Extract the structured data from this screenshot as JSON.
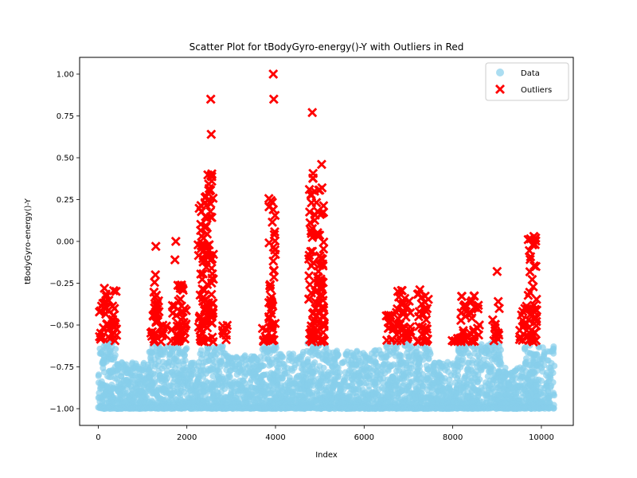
{
  "chart_data": {
    "type": "scatter",
    "title": "Scatter Plot for tBodyGyro-energy()-Y with Outliers in Red",
    "xlabel": "Index",
    "ylabel": "tBodyGyro-energy()-Y",
    "xlim": [
      -420,
      10720
    ],
    "ylim": [
      -1.1,
      1.1
    ],
    "xticks": [
      0,
      2000,
      4000,
      6000,
      8000,
      10000
    ],
    "xtick_labels": [
      "0",
      "2000",
      "4000",
      "6000",
      "8000",
      "10000"
    ],
    "yticks": [
      -1.0,
      -0.75,
      -0.5,
      -0.25,
      0.0,
      0.25,
      0.5,
      0.75,
      1.0
    ],
    "ytick_labels": [
      "−1.00",
      "−0.75",
      "−0.50",
      "−0.25",
      "0.00",
      "0.25",
      "0.50",
      "0.75",
      "1.00"
    ],
    "grid": false,
    "legend": {
      "position": "top-right",
      "entries": [
        {
          "label": "Data",
          "color": "#87ceeb",
          "marker": "circle"
        },
        {
          "label": "Outliers",
          "color": "#ff0000",
          "marker": "x"
        }
      ]
    },
    "series": [
      {
        "name": "Data",
        "color": "#87ceeb",
        "marker": "circle",
        "note": "Dense background of ~10299 points; generated from segment envelopes below",
        "segments": [
          {
            "x0": 0,
            "x1": 420,
            "ymin": -1.0,
            "ymax": -0.6
          },
          {
            "x0": 420,
            "x1": 1150,
            "ymin": -1.0,
            "ymax": -0.72
          },
          {
            "x0": 1150,
            "x1": 2000,
            "ymin": -1.0,
            "ymax": -0.62
          },
          {
            "x0": 2000,
            "x1": 2300,
            "ymin": -1.0,
            "ymax": -0.72
          },
          {
            "x0": 2300,
            "x1": 2900,
            "ymin": -1.0,
            "ymax": -0.62
          },
          {
            "x0": 2900,
            "x1": 3700,
            "ymin": -1.0,
            "ymax": -0.68
          },
          {
            "x0": 3700,
            "x1": 4050,
            "ymin": -1.0,
            "ymax": -0.62
          },
          {
            "x0": 4050,
            "x1": 4700,
            "ymin": -1.0,
            "ymax": -0.66
          },
          {
            "x0": 4700,
            "x1": 5150,
            "ymin": -1.0,
            "ymax": -0.6
          },
          {
            "x0": 5150,
            "x1": 6500,
            "ymin": -1.0,
            "ymax": -0.65
          },
          {
            "x0": 6500,
            "x1": 7500,
            "ymin": -1.0,
            "ymax": -0.6
          },
          {
            "x0": 7500,
            "x1": 8100,
            "ymin": -1.0,
            "ymax": -0.72
          },
          {
            "x0": 8100,
            "x1": 9100,
            "ymin": -1.0,
            "ymax": -0.6
          },
          {
            "x0": 9100,
            "x1": 9600,
            "ymin": -1.0,
            "ymax": -0.75
          },
          {
            "x0": 9600,
            "x1": 10299,
            "ymin": -1.0,
            "ymax": -0.62
          }
        ]
      },
      {
        "name": "Outliers",
        "color": "#ff0000",
        "marker": "x",
        "note": "Clusters of outliers; generated from cluster envelopes plus explicit extreme points",
        "clusters": [
          {
            "x0": 0,
            "x1": 130,
            "ymin": -0.6,
            "ymax": -0.36
          },
          {
            "x0": 130,
            "x1": 430,
            "ymin": -0.6,
            "ymax": -0.26
          },
          {
            "x0": 1180,
            "x1": 1380,
            "ymin": -0.6,
            "ymax": -0.21
          },
          {
            "x0": 1380,
            "x1": 1550,
            "ymin": -0.6,
            "ymax": -0.45
          },
          {
            "x0": 1640,
            "x1": 1920,
            "ymin": -0.6,
            "ymax": -0.26
          },
          {
            "x0": 1920,
            "x1": 2000,
            "ymin": -0.6,
            "ymax": -0.4
          },
          {
            "x0": 2250,
            "x1": 2400,
            "ymin": -0.6,
            "ymax": 0.28
          },
          {
            "x0": 2400,
            "x1": 2600,
            "ymin": -0.6,
            "ymax": 0.42
          },
          {
            "x0": 2780,
            "x1": 2930,
            "ymin": -0.6,
            "ymax": -0.49
          },
          {
            "x0": 3700,
            "x1": 3850,
            "ymin": -0.6,
            "ymax": -0.52
          },
          {
            "x0": 3850,
            "x1": 4000,
            "ymin": -0.6,
            "ymax": 0.27
          },
          {
            "x0": 4750,
            "x1": 4860,
            "ymin": -0.6,
            "ymax": 0.41
          },
          {
            "x0": 4860,
            "x1": 5100,
            "ymin": -0.6,
            "ymax": 0.33
          },
          {
            "x0": 6500,
            "x1": 6700,
            "ymin": -0.6,
            "ymax": -0.42
          },
          {
            "x0": 6700,
            "x1": 7050,
            "ymin": -0.6,
            "ymax": -0.29
          },
          {
            "x0": 7200,
            "x1": 7450,
            "ymin": -0.6,
            "ymax": -0.26
          },
          {
            "x0": 7950,
            "x1": 8180,
            "ymin": -0.6,
            "ymax": -0.58
          },
          {
            "x0": 8180,
            "x1": 8600,
            "ymin": -0.6,
            "ymax": -0.32
          },
          {
            "x0": 8900,
            "x1": 9050,
            "ymin": -0.6,
            "ymax": -0.32
          },
          {
            "x0": 9500,
            "x1": 9700,
            "ymin": -0.6,
            "ymax": -0.38
          },
          {
            "x0": 9700,
            "x1": 9900,
            "ymin": -0.6,
            "ymax": 0.03
          }
        ],
        "points": [
          {
            "x": 1300,
            "y": -0.03
          },
          {
            "x": 1290,
            "y": -0.2
          },
          {
            "x": 1750,
            "y": 0.0
          },
          {
            "x": 1730,
            "y": -0.11
          },
          {
            "x": 2540,
            "y": 0.85
          },
          {
            "x": 2550,
            "y": 0.64
          },
          {
            "x": 3950,
            "y": 1.0
          },
          {
            "x": 3960,
            "y": 0.85
          },
          {
            "x": 4830,
            "y": 0.77
          },
          {
            "x": 5040,
            "y": 0.46
          },
          {
            "x": 5050,
            "y": 0.32
          },
          {
            "x": 9000,
            "y": -0.18
          },
          {
            "x": 9830,
            "y": 0.03
          },
          {
            "x": 9870,
            "y": 0.02
          },
          {
            "x": 2560,
            "y": 0.36
          },
          {
            "x": 3950,
            "y": 0.19
          },
          {
            "x": 4880,
            "y": 0.3
          },
          {
            "x": 4950,
            "y": 0.18
          }
        ]
      }
    ]
  }
}
